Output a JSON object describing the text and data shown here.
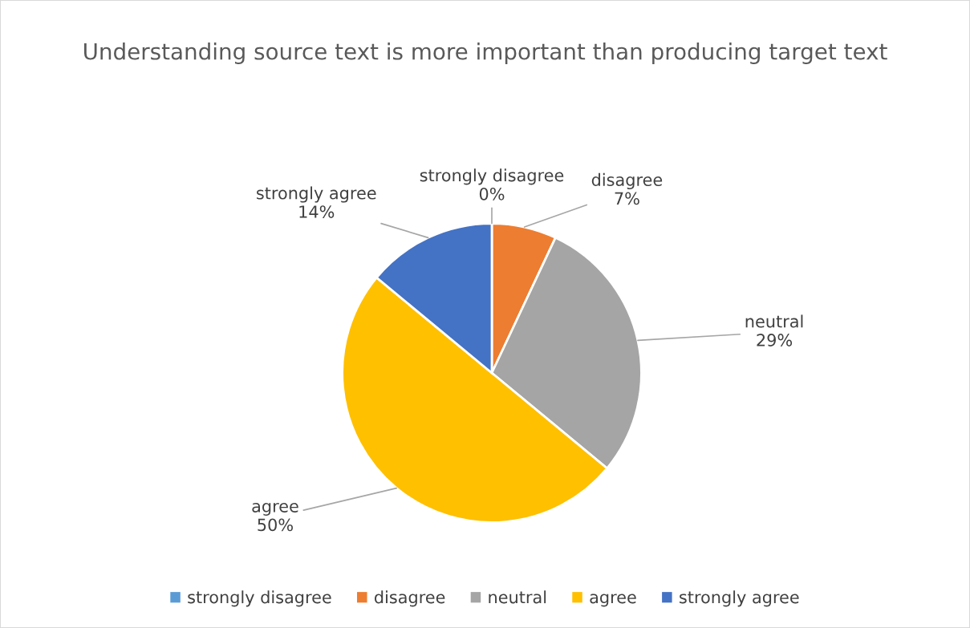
{
  "chart_data": {
    "type": "pie",
    "title": "Understanding source text is more important than producing target text",
    "categories": [
      "strongly disagree",
      "disagree",
      "neutral",
      "agree",
      "strongly agree"
    ],
    "values": [
      0,
      7,
      29,
      50,
      14
    ],
    "value_labels": [
      "0%",
      "7%",
      "29%",
      "50%",
      "14%"
    ],
    "colors": [
      "#5b9bd5",
      "#ed7d31",
      "#a5a5a5",
      "#ffc000",
      "#4472c4"
    ],
    "legend": "bottom"
  }
}
